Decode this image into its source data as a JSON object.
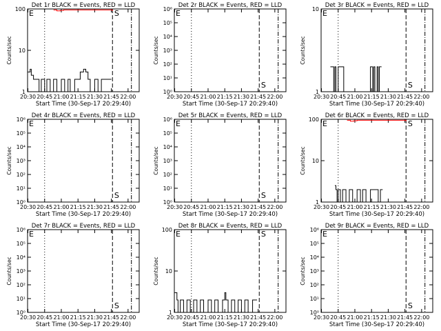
{
  "chart_data": [
    {
      "id": "1r",
      "title": "Det 1r BLACK = Events, RED = LLD",
      "scale": "log",
      "ylim": [
        1,
        100
      ],
      "yticks": [
        "1",
        "10",
        "100"
      ],
      "ylabel": "Counts/sec",
      "xlabel": "Start Time (30-Sep-17 20:29:40)",
      "xticks": [
        "20:30",
        "20:45",
        "21:00",
        "21:15",
        "21:30",
        "21:45",
        "22:00"
      ],
      "vlines": {
        "dotted": "20:45",
        "dashed": "21:46",
        "dashdot": "22:03"
      },
      "s_marker": {
        "label": "S",
        "time": "21:47"
      },
      "series": [
        {
          "color": "#000000",
          "points": [
            [
              "20:30",
              3
            ],
            [
              "20:32",
              3.5
            ],
            [
              "20:33",
              2.5
            ],
            [
              "20:35",
              2
            ],
            [
              "20:38",
              2
            ],
            [
              "20:40",
              1
            ],
            [
              "20:42",
              2
            ],
            [
              "20:45",
              1
            ],
            [
              "20:47",
              2
            ],
            [
              "20:50",
              1
            ],
            [
              "20:53",
              2
            ],
            [
              "20:56",
              1
            ],
            [
              "21:00",
              2
            ],
            [
              "21:03",
              1
            ],
            [
              "21:06",
              2
            ],
            [
              "21:08",
              1
            ],
            [
              "21:12",
              2
            ],
            [
              "21:15",
              2
            ],
            [
              "21:17",
              3
            ],
            [
              "21:20",
              3.5
            ],
            [
              "21:22",
              3
            ],
            [
              "21:24",
              2
            ],
            [
              "21:26",
              1
            ],
            [
              "21:30",
              2
            ],
            [
              "21:33",
              1
            ],
            [
              "21:36",
              2
            ],
            [
              "21:40",
              2
            ],
            [
              "21:43",
              2
            ],
            [
              "21:45",
              2
            ]
          ]
        },
        {
          "color": "#ff0000",
          "points": [
            [
              "20:53",
              95
            ],
            [
              "20:56",
              90
            ],
            [
              "20:59",
              92
            ],
            [
              "21:02",
              95
            ],
            [
              "21:44",
              95
            ],
            [
              "21:46",
              90
            ]
          ]
        }
      ]
    },
    {
      "id": "2r",
      "title": "Det 2r BLACK = Events, RED = LLD",
      "scale": "log",
      "ylim": [
        1,
        1000000
      ],
      "yticks": [
        "10⁰",
        "10¹",
        "10²",
        "10³",
        "10⁴",
        "10⁵",
        "10⁶"
      ],
      "ylabel": "Counts/sec",
      "xlabel": "Start Time (30-Sep-17 20:29:40)",
      "xticks": [
        "20:30",
        "20:45",
        "21:00",
        "21:15",
        "21:30",
        "21:45",
        "22:00"
      ],
      "vlines": {
        "dotted": "20:45",
        "dashed": "21:46",
        "dashdot": "22:03"
      },
      "s_marker": {
        "label": "S",
        "time": "21:47"
      },
      "series": []
    },
    {
      "id": "3r",
      "title": "Det 3r BLACK = Events, RED = LLD",
      "scale": "log",
      "ylim": [
        1,
        10
      ],
      "yticks": [
        "1",
        "10"
      ],
      "ylabel": "Counts/sec",
      "xlabel": "Start Time (30-Sep-17 20:29:40)",
      "xticks": [
        "20:30",
        "20:45",
        "21:00",
        "21:15",
        "21:30",
        "21:45",
        "22:00"
      ],
      "vlines": {
        "dotted": "20:45",
        "dashed": "21:46",
        "dashdot": "22:03"
      },
      "s_marker": {
        "label": "S",
        "time": "21:47"
      },
      "series": [
        {
          "color": "#000000",
          "points": [
            [
              "20:38",
              2
            ],
            [
              "20:40",
              2
            ],
            [
              "20:41",
              1
            ],
            [
              "20:42",
              2
            ],
            [
              "20:43",
              1
            ],
            [
              "20:45",
              2
            ],
            [
              "20:48",
              2
            ],
            [
              "20:50",
              1
            ],
            [
              "21:12",
              1
            ],
            [
              "21:14",
              2
            ],
            [
              "21:16",
              1
            ],
            [
              "21:17",
              2
            ],
            [
              "21:18",
              1
            ],
            [
              "21:20",
              2
            ],
            [
              "21:21",
              1
            ],
            [
              "21:22",
              2
            ],
            [
              "21:24",
              2
            ]
          ]
        }
      ]
    },
    {
      "id": "4r",
      "title": "Det 4r BLACK = Events, RED = LLD",
      "scale": "log",
      "ylim": [
        1,
        1000000
      ],
      "yticks": [
        "10⁰",
        "10¹",
        "10²",
        "10³",
        "10⁴",
        "10⁵",
        "10⁶"
      ],
      "ylabel": "Counts/sec",
      "xlabel": "Start Time (30-Sep-17 20:29:40)",
      "xticks": [
        "20:30",
        "20:45",
        "21:00",
        "21:15",
        "21:30",
        "21:45",
        "22:00"
      ],
      "vlines": {
        "dotted": "20:45",
        "dashed": "21:46",
        "dashdot": "22:03"
      },
      "s_marker": {
        "label": "S",
        "time": "21:47"
      },
      "series": []
    },
    {
      "id": "5r",
      "title": "Det 5r BLACK = Events, RED = LLD",
      "scale": "log",
      "ylim": [
        1,
        1000000
      ],
      "yticks": [
        "10⁰",
        "10¹",
        "10²",
        "10³",
        "10⁴",
        "10⁵",
        "10⁶"
      ],
      "ylabel": "Counts/sec",
      "xlabel": "Start Time (30-Sep-17 20:29:40)",
      "xticks": [
        "20:30",
        "20:45",
        "21:00",
        "21:15",
        "21:30",
        "21:45",
        "22:00"
      ],
      "vlines": {
        "dotted": "20:45",
        "dashed": "21:46",
        "dashdot": "22:03"
      },
      "s_marker": {
        "label": "S",
        "time": "21:47"
      },
      "series": []
    },
    {
      "id": "6r",
      "title": "Det 6r BLACK = Events, RED = LLD",
      "scale": "log",
      "ylim": [
        1,
        100
      ],
      "yticks": [
        "1",
        "10",
        "100"
      ],
      "ylabel": "Counts/sec",
      "xlabel": "Start Time (30-Sep-17 20:29:40)",
      "xticks": [
        "20:30",
        "20:45",
        "21:00",
        "21:15",
        "21:30",
        "21:45",
        "22:00"
      ],
      "vlines": {
        "dotted": "20:45",
        "dashed": "21:46",
        "dashdot": "22:03"
      },
      "s_marker": {
        "label": "S",
        "time": "21:47"
      },
      "series": [
        {
          "color": "#000000",
          "points": [
            [
              "20:42",
              2.5
            ],
            [
              "20:43",
              2
            ],
            [
              "20:44",
              1
            ],
            [
              "20:45",
              2
            ],
            [
              "20:47",
              1
            ],
            [
              "20:49",
              2
            ],
            [
              "20:52",
              1
            ],
            [
              "20:55",
              2
            ],
            [
              "20:58",
              1
            ],
            [
              "21:02",
              2
            ],
            [
              "21:05",
              1
            ],
            [
              "21:07",
              2
            ],
            [
              "21:10",
              1
            ],
            [
              "21:14",
              2
            ],
            [
              "21:18",
              2
            ],
            [
              "21:21",
              1
            ],
            [
              "21:23",
              2
            ],
            [
              "21:25",
              2
            ]
          ]
        },
        {
          "color": "#ff0000",
          "points": [
            [
              "20:53",
              95
            ],
            [
              "20:56",
              90
            ],
            [
              "20:59",
              92
            ],
            [
              "21:02",
              95
            ],
            [
              "21:44",
              95
            ],
            [
              "21:46",
              90
            ]
          ]
        }
      ]
    },
    {
      "id": "7r",
      "title": "Det 7r BLACK = Events, RED = LLD",
      "scale": "log",
      "ylim": [
        1,
        1000000
      ],
      "yticks": [
        "10⁰",
        "10¹",
        "10²",
        "10³",
        "10⁴",
        "10⁵",
        "10⁶"
      ],
      "ylabel": "Counts/sec",
      "xlabel": "Start Time (30-Sep-17 20:29:40)",
      "xticks": [
        "20:30",
        "20:45",
        "21:00",
        "21:15",
        "21:30",
        "21:45",
        "22:00"
      ],
      "vlines": {
        "dotted": "20:45",
        "dashed": "21:46",
        "dashdot": "22:03"
      },
      "s_marker": {
        "label": "S",
        "time": "21:47"
      },
      "series": []
    },
    {
      "id": "8r",
      "title": "Det 8r BLACK = Events, RED = LLD",
      "scale": "log",
      "ylim": [
        1,
        100
      ],
      "yticks": [
        "1",
        "10",
        "100"
      ],
      "ylabel": "Counts/sec",
      "xlabel": "Start Time (30-Sep-17 20:29:40)",
      "xticks": [
        "20:30",
        "20:45",
        "21:00",
        "21:15",
        "21:30",
        "21:45",
        "22:00"
      ],
      "vlines": {
        "dotted": "20:45",
        "dashed": "21:46",
        "dashdot": "22:03"
      },
      "s_marker": {
        "label": "S",
        "time": "21:47"
      },
      "series": [
        {
          "color": "#000000",
          "points": [
            [
              "20:30",
              3
            ],
            [
              "20:32",
              2
            ],
            [
              "20:33",
              1
            ],
            [
              "20:35",
              2
            ],
            [
              "20:38",
              1
            ],
            [
              "20:41",
              2
            ],
            [
              "20:44",
              1
            ],
            [
              "20:47",
              2
            ],
            [
              "20:50",
              1
            ],
            [
              "20:53",
              2
            ],
            [
              "20:56",
              1
            ],
            [
              "21:00",
              2
            ],
            [
              "21:03",
              1
            ],
            [
              "21:06",
              2
            ],
            [
              "21:09",
              1
            ],
            [
              "21:13",
              2
            ],
            [
              "21:15",
              3
            ],
            [
              "21:16",
              2
            ],
            [
              "21:18",
              1
            ],
            [
              "21:21",
              2
            ],
            [
              "21:24",
              1
            ],
            [
              "21:27",
              2
            ],
            [
              "21:30",
              1
            ],
            [
              "21:33",
              2
            ],
            [
              "21:36",
              1
            ],
            [
              "21:40",
              2
            ],
            [
              "21:44",
              2
            ]
          ]
        }
      ]
    },
    {
      "id": "9r",
      "title": "Det 9r BLACK = Events, RED = LLD",
      "scale": "log",
      "ylim": [
        1,
        1000000
      ],
      "yticks": [
        "10⁰",
        "10¹",
        "10²",
        "10³",
        "10⁴",
        "10⁵",
        "10⁶"
      ],
      "ylabel": "Counts/sec",
      "xlabel": "Start Time (30-Sep-17 20:29:40)",
      "xticks": [
        "20:30",
        "20:45",
        "21:00",
        "21:15",
        "21:30",
        "21:45",
        "22:00"
      ],
      "vlines": {
        "dotted": "20:45",
        "dashed": "21:46",
        "dashdot": "22:03"
      },
      "s_marker": {
        "label": "S",
        "time": "21:47"
      },
      "series": []
    }
  ],
  "panel_extra_label": "E"
}
